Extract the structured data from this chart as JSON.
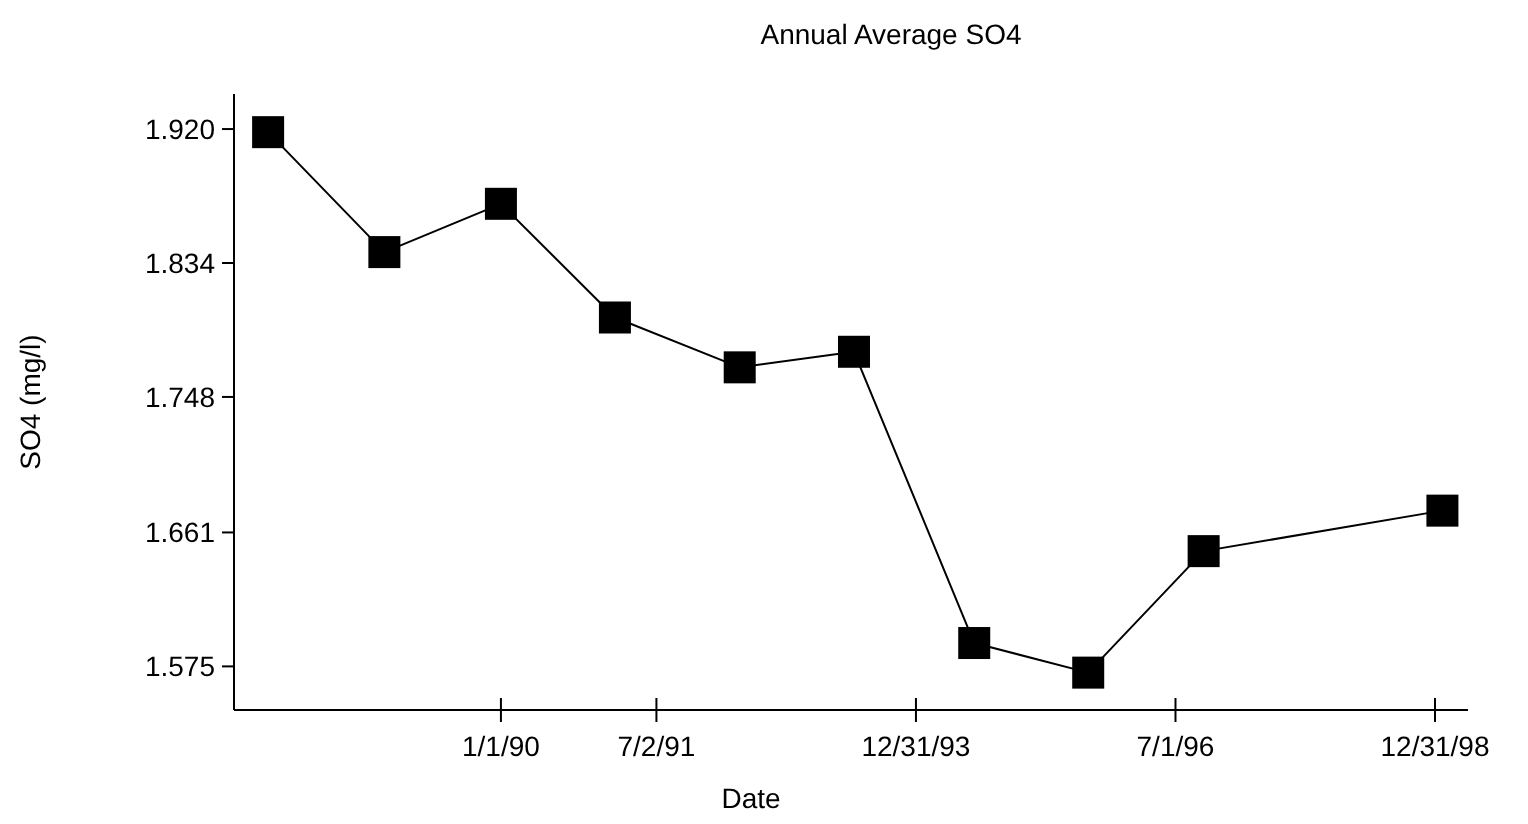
{
  "chart_data": {
    "type": "line",
    "title": "Annual Average SO4",
    "xlabel": "Date",
    "ylabel": "SO4 (mg/l)",
    "x": [
      "1987-10-05",
      "1988-11-17",
      "1990-01-01",
      "1991-02-06",
      "1992-04-20",
      "1993-05-27",
      "1994-07-24",
      "1995-08-29",
      "1996-10-08",
      "1999-01-26"
    ],
    "series": [
      {
        "color": "#000000",
        "values": [
          1.918,
          1.841,
          1.872,
          1.799,
          1.767,
          1.777,
          1.59,
          1.571,
          1.649,
          1.675
        ]
      }
    ],
    "xlim": [
      "1987-06-07",
      "1999-04-26"
    ],
    "xticks": [
      {
        "value": "1990-01-01",
        "label": "1/1/90"
      },
      {
        "value": "1991-07-02",
        "label": "7/2/91"
      },
      {
        "value": "1993-12-31",
        "label": "12/31/93"
      },
      {
        "value": "1996-07-01",
        "label": "7/1/96"
      },
      {
        "value": "1998-12-31",
        "label": "12/31/98"
      }
    ],
    "ylim": [
      1.547,
      1.9425
    ],
    "yticks": [
      {
        "value": 1.575,
        "label": "1.575"
      },
      {
        "value": 1.661,
        "label": "1.661"
      },
      {
        "value": 1.748,
        "label": "1.748"
      },
      {
        "value": 1.834,
        "label": "1.834"
      },
      {
        "value": 1.92,
        "label": "1.920"
      }
    ],
    "marker": "square",
    "line_style": "solid",
    "grid": false
  }
}
